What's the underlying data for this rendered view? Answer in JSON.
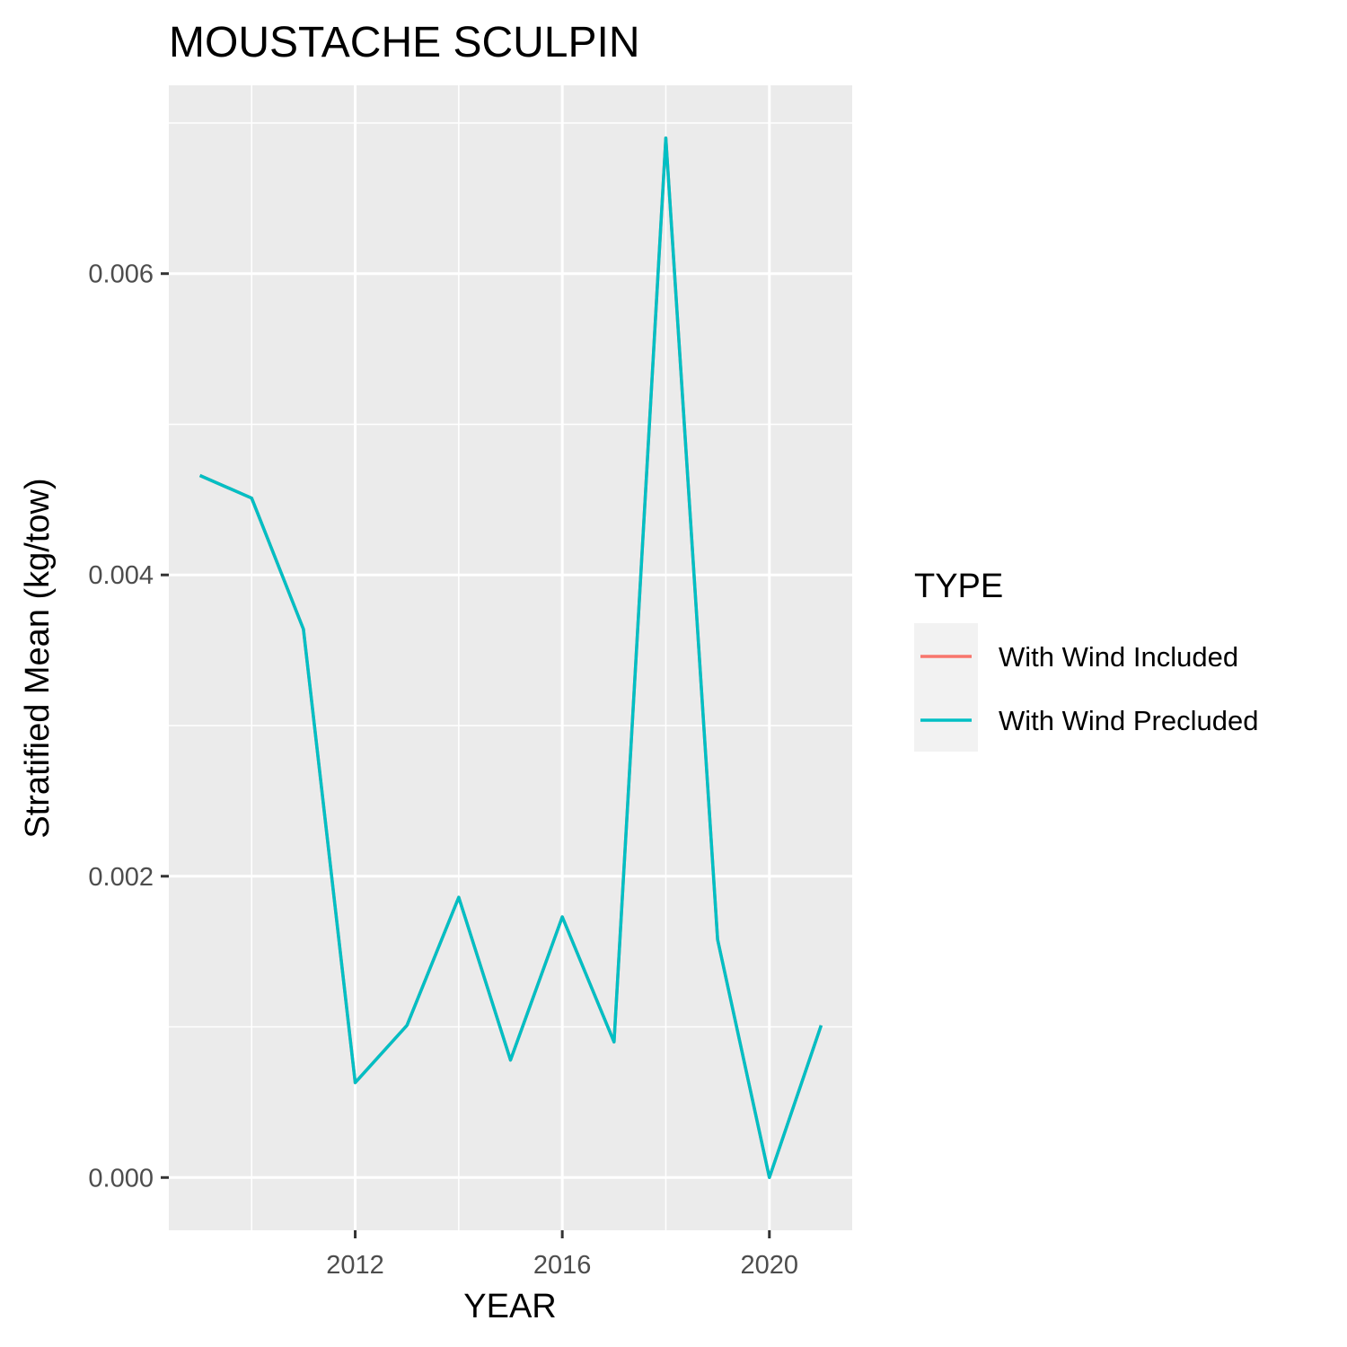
{
  "chart_data": {
    "type": "line",
    "title": "MOUSTACHE SCULPIN",
    "xlabel": "YEAR",
    "ylabel": "Stratified Mean (kg/tow)",
    "x_ticks": [
      2012,
      2016,
      2020
    ],
    "x_tick_labels": [
      "2012",
      "2016",
      "2020"
    ],
    "y_ticks": [
      0,
      0.002,
      0.004,
      0.006
    ],
    "y_tick_labels": [
      "0.000",
      "0.002",
      "0.004",
      "0.006"
    ],
    "xlim": [
      2008.4,
      2021.6
    ],
    "ylim": [
      -0.00035,
      0.00725
    ],
    "grid": true,
    "legend": {
      "title": "TYPE",
      "position": "right"
    },
    "x": [
      2009,
      2010,
      2011,
      2012,
      2013,
      2014,
      2015,
      2016,
      2017,
      2018,
      2019,
      2020,
      2021
    ],
    "series": [
      {
        "name": "With Wind Included",
        "color": "#F8766D",
        "values": [
          0.00466,
          0.00451,
          0.00364,
          0.00063,
          0.00101,
          0.00186,
          0.00078,
          0.00173,
          0.0009,
          0.0069,
          0.00158,
          0.0,
          0.00101
        ]
      },
      {
        "name": "With Wind Precluded",
        "color": "#00BFC4",
        "values": [
          0.00466,
          0.00451,
          0.00364,
          0.00063,
          0.00101,
          0.00186,
          0.00078,
          0.00173,
          0.0009,
          0.0069,
          0.00158,
          0.0,
          0.00101
        ]
      }
    ]
  }
}
